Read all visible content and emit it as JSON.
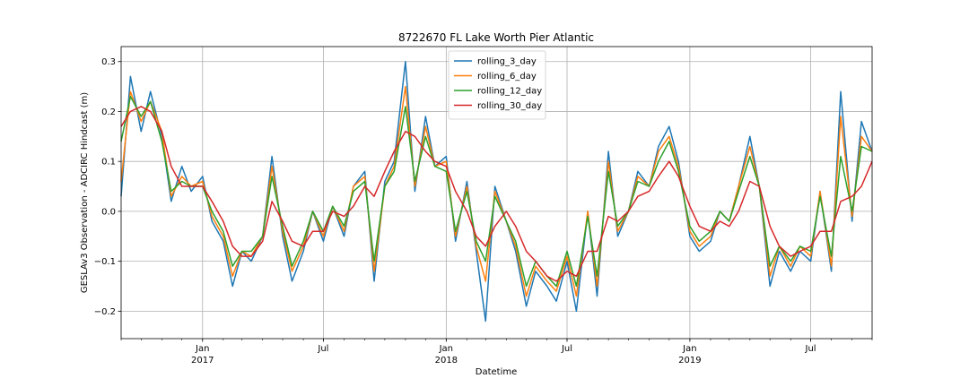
{
  "chart_data": {
    "type": "line",
    "title": "8722670 FL Lake Worth Pier Atlantic",
    "xlabel": "Datetime",
    "ylabel": "GESLAv3 Observation - ADCIRC Hindcast (m)",
    "xlim": [
      "2016-09-01",
      "2019-10-01"
    ],
    "ylim": [
      -0.255,
      0.33
    ],
    "yticks": [
      -0.2,
      -0.1,
      0.0,
      0.1,
      0.2,
      0.3
    ],
    "ytick_labels": [
      "−0.2",
      "−0.1",
      "0.0",
      "0.1",
      "0.2",
      "0.3"
    ],
    "xticks": [
      {
        "date": "2017-01-01",
        "label": "Jan",
        "sublabel": "2017"
      },
      {
        "date": "2017-07-01",
        "label": "Jul",
        "sublabel": ""
      },
      {
        "date": "2018-01-01",
        "label": "Jan",
        "sublabel": "2018"
      },
      {
        "date": "2018-07-01",
        "label": "Jul",
        "sublabel": ""
      },
      {
        "date": "2019-01-01",
        "label": "Jan",
        "sublabel": "2019"
      },
      {
        "date": "2019-07-01",
        "label": "Jul",
        "sublabel": ""
      }
    ],
    "grid": true,
    "legend": "top-center",
    "x": [
      "2016-09-01",
      "2016-09-15",
      "2016-10-01",
      "2016-10-15",
      "2016-11-01",
      "2016-11-15",
      "2016-12-01",
      "2016-12-15",
      "2017-01-01",
      "2017-01-15",
      "2017-02-01",
      "2017-02-15",
      "2017-03-01",
      "2017-03-15",
      "2017-04-01",
      "2017-04-15",
      "2017-05-01",
      "2017-05-15",
      "2017-06-01",
      "2017-06-15",
      "2017-07-01",
      "2017-07-15",
      "2017-08-01",
      "2017-08-15",
      "2017-09-01",
      "2017-09-15",
      "2017-10-01",
      "2017-10-15",
      "2017-11-01",
      "2017-11-15",
      "2017-12-01",
      "2017-12-15",
      "2018-01-01",
      "2018-01-15",
      "2018-02-01",
      "2018-02-15",
      "2018-03-01",
      "2018-03-15",
      "2018-04-01",
      "2018-04-15",
      "2018-05-01",
      "2018-05-15",
      "2018-06-01",
      "2018-06-15",
      "2018-07-01",
      "2018-07-15",
      "2018-08-01",
      "2018-08-15",
      "2018-09-01",
      "2018-09-15",
      "2018-10-01",
      "2018-10-15",
      "2018-11-01",
      "2018-11-15",
      "2018-12-01",
      "2018-12-15",
      "2019-01-01",
      "2019-01-15",
      "2019-02-01",
      "2019-02-15",
      "2019-03-01",
      "2019-03-15",
      "2019-04-01",
      "2019-04-15",
      "2019-05-01",
      "2019-05-15",
      "2019-06-01",
      "2019-06-15",
      "2019-07-01",
      "2019-07-15",
      "2019-08-01",
      "2019-08-15",
      "2019-09-01",
      "2019-09-15",
      "2019-10-01"
    ],
    "series": [
      {
        "name": "rolling_3_day",
        "color": "#1f77b4",
        "values": [
          0.03,
          0.27,
          0.16,
          0.24,
          0.15,
          0.02,
          0.09,
          0.04,
          0.07,
          -0.02,
          -0.06,
          -0.15,
          -0.08,
          -0.1,
          -0.05,
          0.11,
          -0.05,
          -0.14,
          -0.08,
          0.0,
          -0.06,
          0.01,
          -0.05,
          0.05,
          0.08,
          -0.14,
          0.06,
          0.1,
          0.3,
          0.04,
          0.19,
          0.09,
          0.11,
          -0.06,
          0.06,
          -0.08,
          -0.22,
          0.05,
          -0.02,
          -0.08,
          -0.19,
          -0.12,
          -0.15,
          -0.18,
          -0.1,
          -0.2,
          0.0,
          -0.17,
          0.12,
          -0.05,
          0.0,
          0.08,
          0.05,
          0.13,
          0.17,
          0.1,
          -0.05,
          -0.08,
          -0.06,
          0.0,
          -0.02,
          0.05,
          0.15,
          0.05,
          -0.15,
          -0.08,
          -0.12,
          -0.08,
          -0.1,
          0.04,
          -0.12,
          0.24,
          -0.02,
          0.18,
          0.12
        ]
      },
      {
        "name": "rolling_6_day",
        "color": "#ff7f0e",
        "values": [
          0.06,
          0.24,
          0.18,
          0.22,
          0.16,
          0.03,
          0.07,
          0.05,
          0.06,
          -0.01,
          -0.05,
          -0.13,
          -0.08,
          -0.09,
          -0.05,
          0.09,
          -0.04,
          -0.12,
          -0.07,
          0.0,
          -0.05,
          0.01,
          -0.04,
          0.05,
          0.07,
          -0.12,
          0.05,
          0.09,
          0.25,
          0.05,
          0.17,
          0.09,
          0.1,
          -0.05,
          0.05,
          -0.07,
          -0.14,
          0.04,
          -0.02,
          -0.07,
          -0.17,
          -0.11,
          -0.14,
          -0.16,
          -0.09,
          -0.17,
          0.0,
          -0.15,
          0.1,
          -0.04,
          0.0,
          0.07,
          0.05,
          0.12,
          0.15,
          0.09,
          -0.04,
          -0.07,
          -0.05,
          0.0,
          -0.02,
          0.05,
          0.13,
          0.05,
          -0.13,
          -0.07,
          -0.11,
          -0.07,
          -0.09,
          0.04,
          -0.11,
          0.19,
          -0.01,
          0.15,
          0.12
        ]
      },
      {
        "name": "rolling_12_day",
        "color": "#2ca02c",
        "values": [
          0.14,
          0.23,
          0.19,
          0.22,
          0.14,
          0.04,
          0.06,
          0.05,
          0.05,
          0.0,
          -0.04,
          -0.11,
          -0.08,
          -0.08,
          -0.05,
          0.07,
          -0.03,
          -0.11,
          -0.06,
          0.0,
          -0.04,
          0.01,
          -0.03,
          0.04,
          0.06,
          -0.1,
          0.05,
          0.08,
          0.21,
          0.06,
          0.15,
          0.09,
          0.08,
          -0.04,
          0.04,
          -0.06,
          -0.1,
          0.03,
          -0.02,
          -0.06,
          -0.15,
          -0.1,
          -0.13,
          -0.15,
          -0.08,
          -0.15,
          -0.01,
          -0.13,
          0.08,
          -0.03,
          0.0,
          0.06,
          0.05,
          0.1,
          0.14,
          0.08,
          -0.03,
          -0.06,
          -0.04,
          0.0,
          -0.02,
          0.04,
          0.11,
          0.05,
          -0.11,
          -0.07,
          -0.1,
          -0.07,
          -0.08,
          0.03,
          -0.09,
          0.11,
          0.0,
          0.13,
          0.12
        ]
      },
      {
        "name": "rolling_30_day",
        "color": "#d62728",
        "values": [
          0.17,
          0.2,
          0.21,
          0.2,
          0.16,
          0.09,
          0.05,
          0.05,
          0.05,
          0.02,
          -0.02,
          -0.07,
          -0.09,
          -0.09,
          -0.06,
          0.02,
          -0.02,
          -0.06,
          -0.07,
          -0.04,
          -0.04,
          0.0,
          -0.01,
          0.01,
          0.05,
          0.03,
          0.08,
          0.12,
          0.16,
          0.15,
          0.12,
          0.1,
          0.09,
          0.04,
          0.0,
          -0.05,
          -0.07,
          -0.03,
          0.0,
          -0.03,
          -0.08,
          -0.1,
          -0.13,
          -0.14,
          -0.12,
          -0.13,
          -0.08,
          -0.08,
          -0.01,
          -0.02,
          0.0,
          0.03,
          0.04,
          0.07,
          0.1,
          0.07,
          0.01,
          -0.03,
          -0.04,
          -0.02,
          -0.03,
          0.0,
          0.06,
          0.05,
          -0.03,
          -0.07,
          -0.09,
          -0.08,
          -0.07,
          -0.04,
          -0.04,
          0.02,
          0.03,
          0.05,
          0.1
        ]
      }
    ]
  }
}
